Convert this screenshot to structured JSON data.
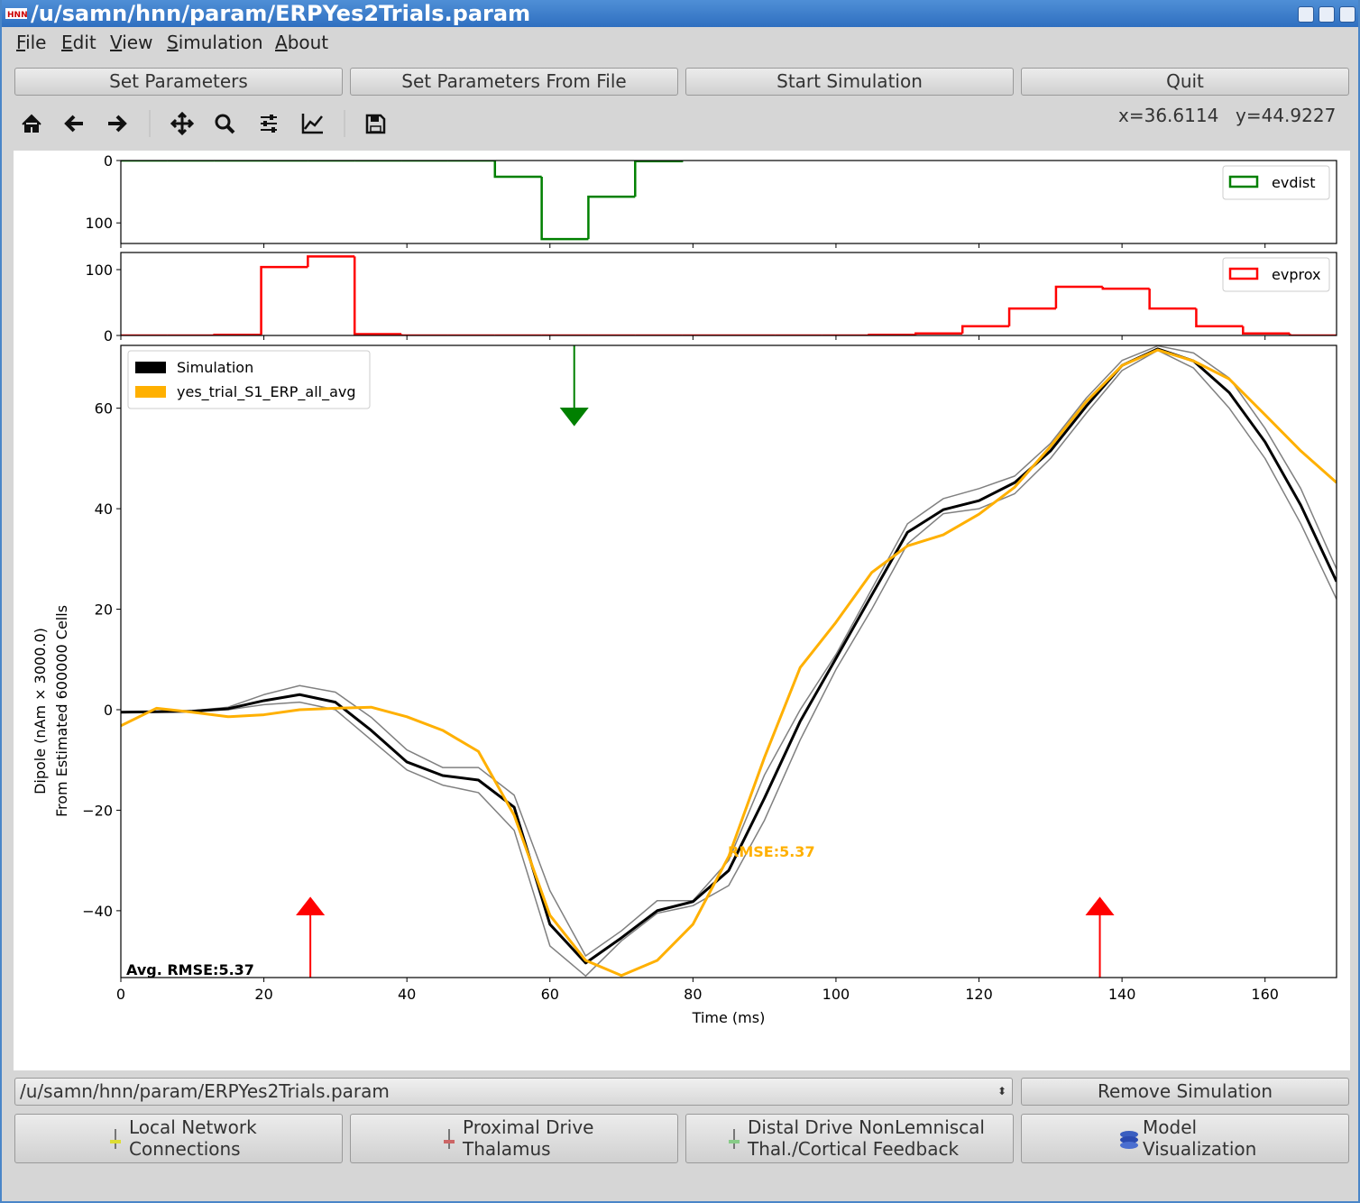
{
  "window_title": "/u/samn/hnn/param/ERPYes2Trials.param",
  "menu": [
    "File",
    "Edit",
    "View",
    "Simulation",
    "About"
  ],
  "buttons": [
    "Set Parameters",
    "Set Parameters From File",
    "Start Simulation",
    "Quit"
  ],
  "cursor": {
    "x": "x=36.6114",
    "y": "y=44.9227"
  },
  "chart_data": [
    {
      "type": "histogram",
      "bins": [
        0,
        6.54,
        13.08,
        19.62,
        26.15,
        32.69,
        39.23,
        45.77,
        52.31,
        58.85,
        65.38,
        71.92,
        78.46
      ],
      "series": [
        {
          "name": "evdist",
          "color": "#008000",
          "values": [
            0,
            0,
            0,
            0,
            0,
            0,
            0,
            0,
            26,
            126,
            58,
            1
          ]
        }
      ],
      "xlim": [
        0,
        170
      ],
      "xticks": [
        0,
        20,
        40,
        60,
        80,
        100,
        120,
        140,
        160
      ],
      "xtick_labels": false,
      "ylim": [
        133,
        0
      ],
      "yticks": [
        0,
        100
      ],
      "legend": "upper right"
    },
    {
      "type": "histogram",
      "bins": [
        0,
        6.54,
        13.08,
        19.62,
        26.15,
        32.69,
        39.23,
        45.77,
        52.31,
        58.85,
        65.38,
        71.92,
        78.46,
        85,
        91.54,
        98.08,
        104.62,
        111.15,
        117.69,
        124.23,
        130.77,
        137.31,
        143.85,
        150.38,
        156.92,
        163.46,
        170
      ],
      "series": [
        {
          "name": "evprox",
          "color": "#ff0000",
          "values": [
            0,
            0,
            1,
            104,
            120,
            2,
            0,
            0,
            0,
            0,
            0,
            0,
            0,
            0,
            0,
            0,
            1,
            3,
            14,
            41,
            74,
            71,
            41,
            14,
            3,
            0
          ]
        }
      ],
      "xlim": [
        0,
        170
      ],
      "xticks": [
        0,
        20,
        40,
        60,
        80,
        100,
        120,
        140,
        160
      ],
      "xtick_labels": false,
      "ylim": [
        0,
        126
      ],
      "yticks": [
        0,
        100
      ],
      "legend": "upper right"
    },
    {
      "type": "line",
      "x": [
        0,
        5,
        10,
        15,
        20,
        25,
        30,
        35,
        40,
        45,
        50,
        55,
        60,
        65,
        70,
        75,
        80,
        85,
        90,
        95,
        100,
        105,
        110,
        115,
        120,
        125,
        130,
        135,
        140,
        145,
        150,
        155,
        160,
        165,
        170
      ],
      "series": [
        {
          "color": "#808080",
          "values": [
            -0.5,
            -0.4,
            -0.2,
            0.5,
            3,
            4.8,
            3.5,
            -1.5,
            -8,
            -11.5,
            -11.5,
            -17,
            -36,
            -49,
            -44,
            -38,
            -38,
            -30,
            -13,
            0,
            11,
            24,
            37,
            42,
            44,
            46.5,
            53,
            62,
            69.5,
            72.4,
            71,
            66,
            56,
            44,
            28
          ]
        },
        {
          "color": "#808080",
          "values": [
            -0.5,
            -0.4,
            -0.4,
            0,
            1,
            1.5,
            0,
            -6,
            -12,
            -15,
            -16.5,
            -24,
            -47,
            -53,
            -46,
            -40.5,
            -39,
            -35,
            -22,
            -6,
            8,
            20,
            33,
            39,
            40,
            43,
            50,
            59,
            67.5,
            71.5,
            68,
            60,
            50,
            37,
            22
          ]
        },
        {
          "name": "Simulation",
          "color": "#000000",
          "values": [
            -0.5,
            -0.4,
            -0.3,
            0.2,
            1.8,
            3.0,
            1.5,
            -4.1,
            -10.4,
            -13.1,
            -14,
            -19.4,
            -42.7,
            -50.4,
            -45.4,
            -40,
            -38.2,
            -32,
            -17.6,
            -2.3,
            10.2,
            22.8,
            35.3,
            39.8,
            41.6,
            45.2,
            51.5,
            60.4,
            68.5,
            71.8,
            69.4,
            63.1,
            53.3,
            40.7,
            25.5
          ]
        },
        {
          "name": "yes_trial_S1_ERP_all_avg",
          "color": "#ffb000",
          "values": [
            -3.2,
            0.3,
            -0.5,
            -1.4,
            -1,
            0,
            0.3,
            0.5,
            -1.4,
            -4.1,
            -8.3,
            -21,
            -40.9,
            -49.9,
            -52.9,
            -49.9,
            -42.7,
            -29.2,
            -9.5,
            8.4,
            17.4,
            27.3,
            32.6,
            34.8,
            38.9,
            44.3,
            52.4,
            61.3,
            68.5,
            71.6,
            69.4,
            65.8,
            58.7,
            51.5,
            45.2
          ]
        }
      ],
      "markers": [
        {
          "x": 63.4,
          "color": "#008000",
          "direction": "down"
        },
        {
          "x": 26.5,
          "color": "#ff0000",
          "direction": "up"
        },
        {
          "x": 136.9,
          "color": "#ff0000",
          "direction": "up"
        }
      ],
      "rmse": "RMSE:5.37",
      "avg_rmse": "Avg. RMSE:5.37",
      "xlim": [
        0,
        170
      ],
      "xticks": [
        0,
        20,
        40,
        60,
        80,
        100,
        120,
        140,
        160
      ],
      "xtick_labels": true,
      "ylim": [
        -53.3,
        72.5
      ],
      "yticks": [
        {
          "value": -40,
          "label": "−40"
        },
        {
          "value": -20,
          "label": "−20"
        },
        0,
        20,
        40,
        60
      ],
      "xlabel": "Time (ms)",
      "ylabel": [
        "Dipole (nAm × 3000.0)",
        "From Estimated 600000 Cells"
      ],
      "legend": "upper left"
    }
  ],
  "simulation_select": "/u/samn/hnn/param/ERPYes2Trials.param",
  "remove_button": "Remove Simulation",
  "panel_buttons": [
    [
      "Local Network",
      "Connections"
    ],
    [
      "Proximal Drive",
      "Thalamus"
    ],
    [
      "Distal Drive NonLemniscal",
      "Thal./Cortical Feedback"
    ],
    [
      "Model",
      "Visualization"
    ]
  ]
}
